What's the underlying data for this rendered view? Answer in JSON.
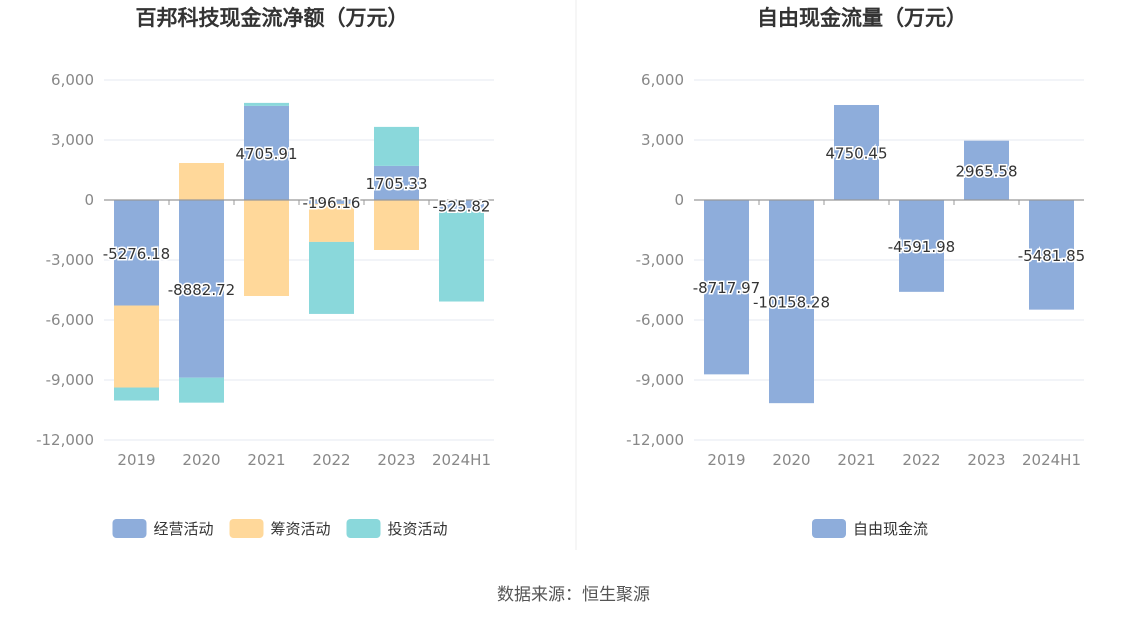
{
  "source_text": "数据来源：恒生聚源",
  "chart_data": [
    {
      "type": "bar",
      "stacked": true,
      "title": "百邦科技现金流净额（万元）",
      "categories": [
        "2019",
        "2020",
        "2021",
        "2022",
        "2023",
        "2024H1"
      ],
      "ylim": [
        -12000,
        6000
      ],
      "yticks": [
        6000,
        3000,
        0,
        -3000,
        -6000,
        -9000,
        -12000
      ],
      "ytick_labels": [
        "6,000",
        "3,000",
        "0",
        "-3,000",
        "-6,000",
        "-9,000",
        "-12,000"
      ],
      "grid": true,
      "legend_position": "bottom",
      "series": [
        {
          "name": "经营活动",
          "color": "#8EADDB",
          "values": [
            -5276.18,
            -8882.72,
            4705.91,
            -196.16,
            1705.33,
            -525.82
          ]
        },
        {
          "name": "筹资活动",
          "color": "#FFD89A",
          "values": [
            -4100,
            1850,
            -4800,
            -1900,
            -2500,
            0
          ]
        },
        {
          "name": "投资活动",
          "color": "#8AD8DB",
          "values": [
            -650,
            -1250,
            150,
            -3600,
            1950,
            -4550
          ]
        }
      ],
      "data_labels": [
        "-5276.18",
        "-8882.72",
        "4705.91",
        "-196.16",
        "1705.33",
        "-525.82"
      ]
    },
    {
      "type": "bar",
      "stacked": false,
      "title": "自由现金流量（万元）",
      "categories": [
        "2019",
        "2020",
        "2021",
        "2022",
        "2023",
        "2024H1"
      ],
      "ylim": [
        -12000,
        6000
      ],
      "yticks": [
        6000,
        3000,
        0,
        -3000,
        -6000,
        -9000,
        -12000
      ],
      "ytick_labels": [
        "6,000",
        "3,000",
        "0",
        "-3,000",
        "-6,000",
        "-9,000",
        "-12,000"
      ],
      "grid": true,
      "legend_position": "bottom",
      "series": [
        {
          "name": "自由现金流",
          "color": "#8EADDB",
          "values": [
            -8717.97,
            -10158.28,
            4750.45,
            -4591.98,
            2965.58,
            -5481.85
          ]
        }
      ],
      "data_labels": [
        "-8717.97",
        "-10158.28",
        "4750.45",
        "-4591.98",
        "2965.58",
        "-5481.85"
      ]
    }
  ]
}
